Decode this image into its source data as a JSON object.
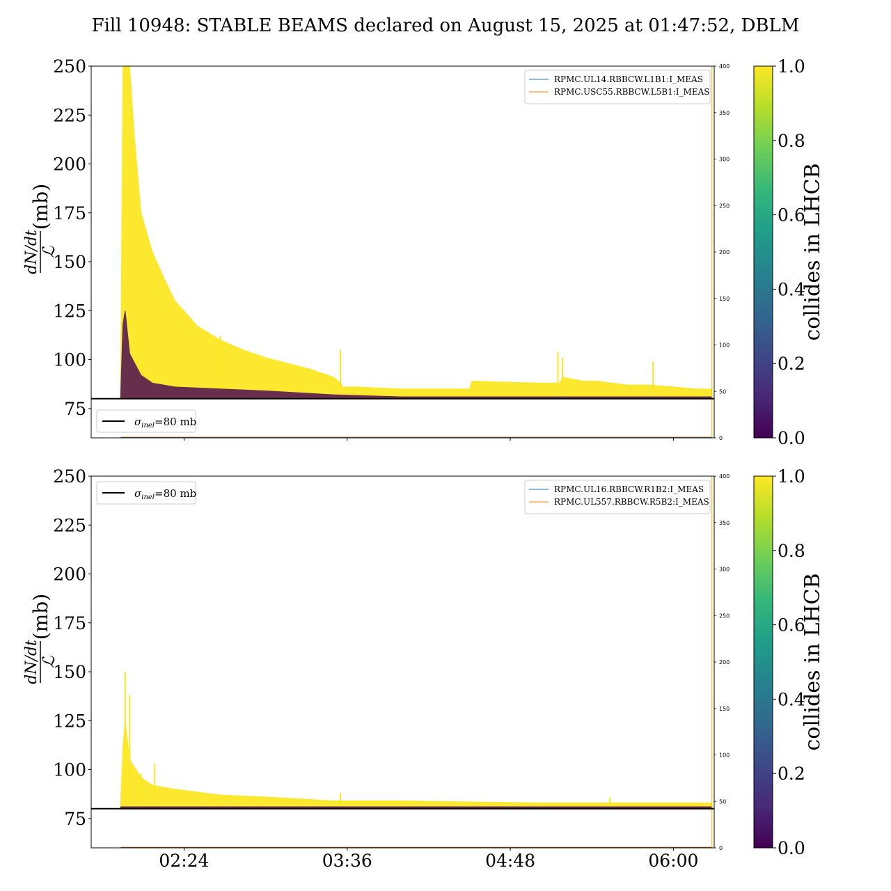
{
  "title": "Fill 10948: STABLE BEAMS declared on August 15, 2025 at 01:47:52, DBLM",
  "colors": {
    "yellow": "#fde725",
    "dark": "#440154",
    "blue_line": "#1f77b4",
    "orange_line": "#ff7f0e",
    "gold_vline": "#f0c000",
    "viridis": [
      "#440154",
      "#482878",
      "#3e4989",
      "#31688e",
      "#26828e",
      "#1f9e89",
      "#35b779",
      "#6ece58",
      "#b5de2b",
      "#fde725"
    ]
  },
  "chart_data": [
    {
      "type": "line",
      "ylabel_numerator": "dN/dt",
      "ylabel_denominator": "ℒ",
      "ylabel_unit": "(mb)",
      "ylim": [
        60,
        250
      ],
      "yticks": [
        "75",
        "100",
        "125",
        "150",
        "175",
        "200",
        "225",
        "250"
      ],
      "ytick_values": [
        75,
        100,
        125,
        150,
        175,
        200,
        225,
        250
      ],
      "xlim": [
        "01:43",
        "06:18"
      ],
      "xticks": [
        "02:24",
        "03:36",
        "04:48",
        "06:00"
      ],
      "secondary_ylim": [
        0,
        400
      ],
      "secondary_yticks": [
        "0",
        "50",
        "100",
        "150",
        "200",
        "250",
        "300",
        "350",
        "400"
      ],
      "reference_line": {
        "label_symbol": "σ",
        "label_sub": "inel",
        "label_rest": "=80 mb",
        "value": 80
      },
      "reference_legend_position": "lower-left",
      "legend_position": "upper-right",
      "series": [
        {
          "name": "RPMC.UL14.RBBCW.L1B1:I_MEAS",
          "color": "#1f77b4"
        },
        {
          "name": "RPMC.USC55.RBBCW.L5B1:I_MEAS",
          "color": "#ff7f0e"
        }
      ],
      "envelope_yellow": {
        "x": [
          "01:56",
          "01:57",
          "01:58",
          "02:00",
          "02:02",
          "02:05",
          "02:10",
          "02:15",
          "02:20",
          "02:30",
          "02:40",
          "02:50",
          "03:00",
          "03:10",
          "03:20",
          "03:30",
          "03:33",
          "03:34",
          "03:40",
          "04:00",
          "04:20",
          "04:30",
          "04:31",
          "05:00",
          "05:10",
          "05:11",
          "05:20",
          "05:25",
          "05:26",
          "05:40",
          "05:50",
          "06:00",
          "06:10",
          "06:17"
        ],
        "y": [
          85,
          250,
          250,
          250,
          215,
          175,
          155,
          142,
          130,
          117,
          110,
          105,
          101,
          98,
          95,
          91,
          88,
          86,
          86,
          85,
          85,
          85,
          89,
          88,
          88,
          91,
          89,
          89,
          89,
          87,
          87,
          86,
          85,
          85
        ]
      },
      "envelope_dark": {
        "x": [
          "01:56",
          "01:57",
          "01:58",
          "02:00",
          "02:05",
          "02:10",
          "02:20",
          "02:40",
          "03:00",
          "03:30",
          "04:00",
          "05:00",
          "06:00",
          "06:17"
        ],
        "y": [
          82,
          118,
          125,
          103,
          92,
          88,
          86,
          85,
          84,
          82,
          81,
          81,
          81,
          81
        ]
      },
      "yellow_spikes": [
        {
          "x": "02:05",
          "y": 120
        },
        {
          "x": "02:40",
          "y": 112
        },
        {
          "x": "03:33",
          "y": 105
        },
        {
          "x": "05:09",
          "y": 104
        },
        {
          "x": "05:11",
          "y": 101
        },
        {
          "x": "05:51",
          "y": 99
        }
      ],
      "vline_x": "06:17"
    },
    {
      "type": "line",
      "ylabel_numerator": "dN/dt",
      "ylabel_denominator": "ℒ",
      "ylabel_unit": "(mb)",
      "ylim": [
        60,
        250
      ],
      "yticks": [
        "75",
        "100",
        "125",
        "150",
        "175",
        "200",
        "225",
        "250"
      ],
      "ytick_values": [
        75,
        100,
        125,
        150,
        175,
        200,
        225,
        250
      ],
      "xlim": [
        "01:43",
        "06:18"
      ],
      "xticks": [
        "02:24",
        "03:36",
        "04:48",
        "06:00"
      ],
      "secondary_ylim": [
        0,
        400
      ],
      "secondary_yticks": [
        "0",
        "50",
        "100",
        "150",
        "200",
        "250",
        "300",
        "350",
        "400"
      ],
      "reference_line": {
        "label_symbol": "σ",
        "label_sub": "inel",
        "label_rest": "=80 mb",
        "value": 80
      },
      "reference_legend_position": "upper-left",
      "legend_position": "upper-right",
      "series": [
        {
          "name": "RPMC.UL16.RBBCW.R1B2:I_MEAS",
          "color": "#1f77b4"
        },
        {
          "name": "RPMC.UL557.RBBCW.R5B2:I_MEAS",
          "color": "#ff7f0e"
        }
      ],
      "envelope_yellow": {
        "x": [
          "01:56",
          "01:57",
          "01:58",
          "02:00",
          "02:05",
          "02:10",
          "02:20",
          "02:40",
          "03:00",
          "03:30",
          "04:00",
          "05:00",
          "06:00",
          "06:17"
        ],
        "y": [
          82,
          112,
          125,
          105,
          96,
          92,
          90,
          87,
          86,
          84,
          84,
          83,
          83,
          83
        ]
      },
      "envelope_dark": {
        "x": [
          "01:56",
          "06:17"
        ],
        "y": [
          81,
          81
        ]
      },
      "yellow_spikes": [
        {
          "x": "01:58",
          "y": 150
        },
        {
          "x": "02:00",
          "y": 138
        },
        {
          "x": "02:05",
          "y": 98
        },
        {
          "x": "02:11",
          "y": 103
        },
        {
          "x": "03:33",
          "y": 88
        },
        {
          "x": "05:32",
          "y": 86
        }
      ],
      "vline_x": "06:17"
    }
  ],
  "colorbar": {
    "label": "collides in LHCB",
    "range": [
      0,
      1
    ],
    "ticks": [
      "0.0",
      "0.2",
      "0.4",
      "0.6",
      "0.8",
      "1.0"
    ],
    "tick_values": [
      0.0,
      0.2,
      0.4,
      0.6,
      0.8,
      1.0
    ]
  }
}
